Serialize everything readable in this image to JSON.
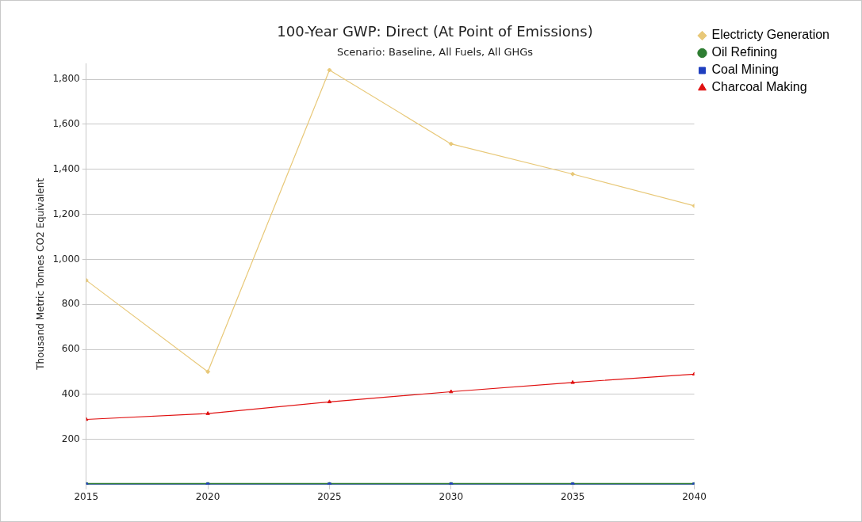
{
  "chart_data": {
    "type": "line",
    "title": "100-Year GWP: Direct (At Point of Emissions)",
    "subtitle": "Scenario: Baseline, All Fuels, All GHGs",
    "ylabel": "Thousand Metric Tonnes CO2 Equivalent",
    "x": [
      2015,
      2020,
      2025,
      2030,
      2035,
      2040
    ],
    "xlim": [
      2015,
      2040
    ],
    "xticks": [
      2015,
      2020,
      2025,
      2030,
      2035,
      2040
    ],
    "ylim": [
      0,
      1870
    ],
    "yticks": [
      {
        "value": 200,
        "label": "200"
      },
      {
        "value": 400,
        "label": "400"
      },
      {
        "value": 600,
        "label": "600"
      },
      {
        "value": 800,
        "label": "800"
      },
      {
        "value": 1000,
        "label": "1,000"
      },
      {
        "value": 1200,
        "label": "1,200"
      },
      {
        "value": 1400,
        "label": "1,400"
      },
      {
        "value": 1600,
        "label": "1,600"
      },
      {
        "value": 1800,
        "label": "1,800"
      }
    ],
    "grid": "y",
    "legend": "top right",
    "line_style": "solid",
    "series": [
      {
        "name": "Electricty Generation",
        "color": "#e8c878",
        "marker": "diamond",
        "values": [
          907,
          501,
          1841,
          1513,
          1379,
          1238
        ]
      },
      {
        "name": "Oil Refining",
        "color": "#2e7d32",
        "marker": "circle",
        "values": [
          0,
          0,
          0,
          0,
          0,
          0
        ]
      },
      {
        "name": "Coal Mining",
        "color": "#1f3fbf",
        "marker": "square",
        "values": [
          0,
          0,
          0,
          0,
          0,
          0
        ]
      },
      {
        "name": "Charcoal Making",
        "color": "#e01010",
        "marker": "triangle",
        "values": [
          289,
          315,
          367,
          412,
          453,
          490
        ]
      }
    ]
  }
}
